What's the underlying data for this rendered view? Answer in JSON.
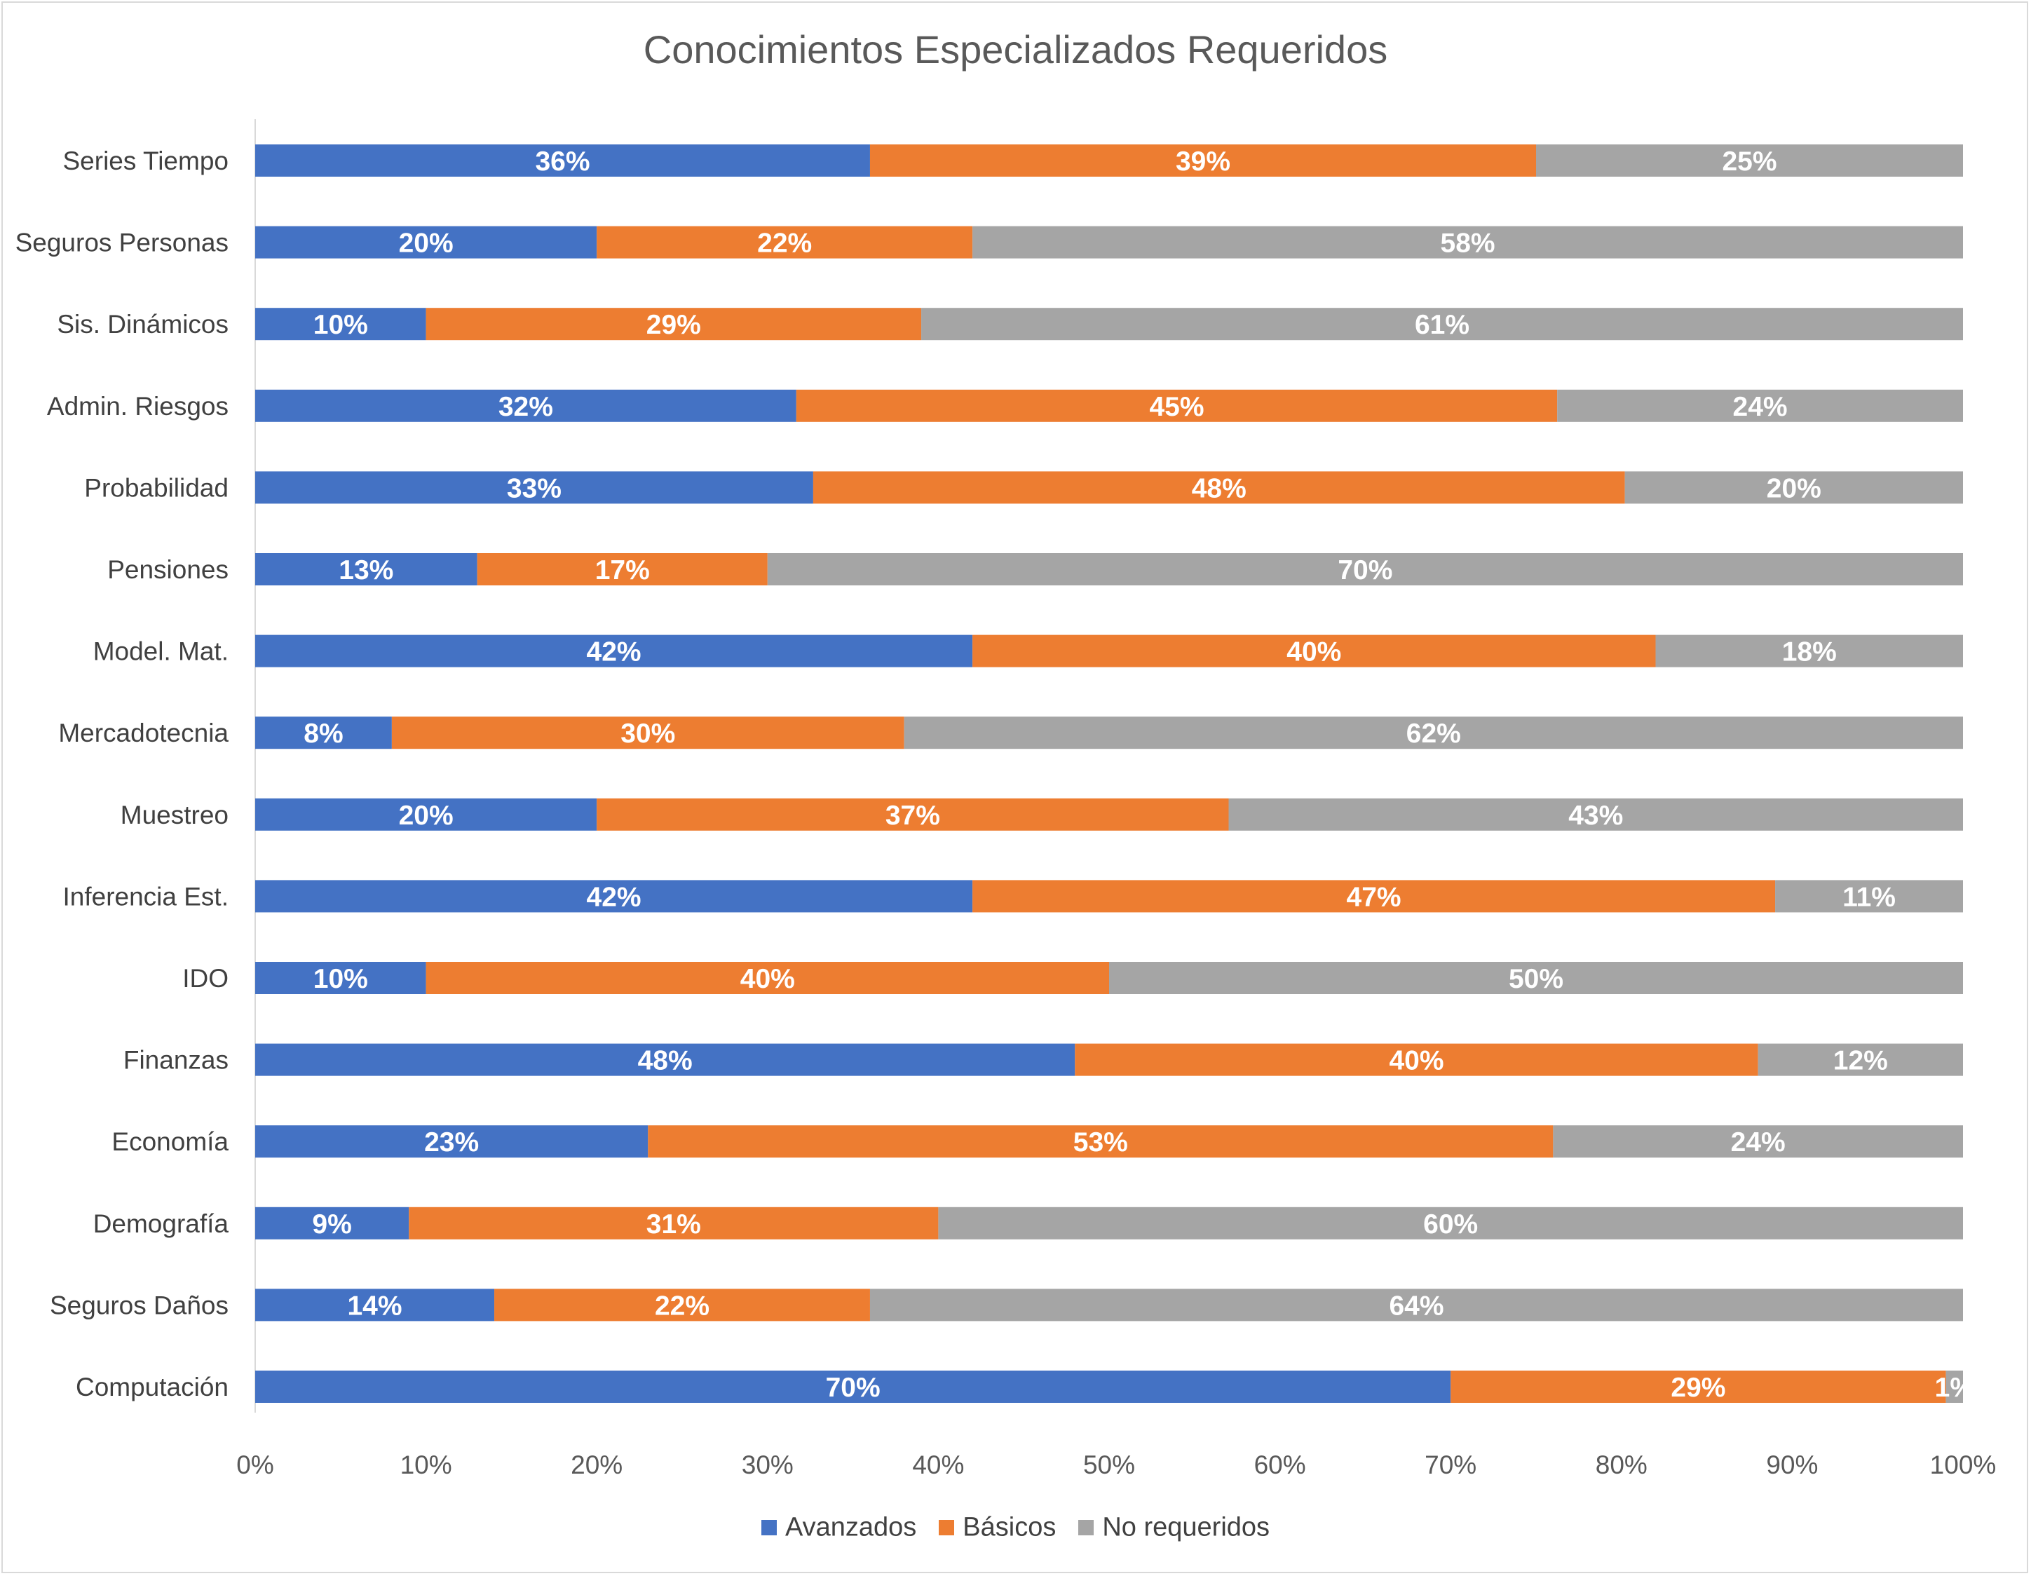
{
  "chart_data": {
    "type": "bar",
    "orientation": "horizontal",
    "stacked": "percent",
    "title": "Conocimientos Especializados Requeridos",
    "categories": [
      "Series Tiempo",
      "Seguros Personas",
      "Sis. Dinámicos",
      "Admin. Riesgos",
      "Probabilidad",
      "Pensiones",
      "Model. Mat.",
      "Mercadotecnia",
      "Muestreo",
      "Inferencia Est.",
      "IDO",
      "Finanzas",
      "Economía",
      "Demografía",
      "Seguros Daños",
      "Computación"
    ],
    "series": [
      {
        "name": "Avanzados",
        "color": "#4472C4",
        "values": [
          36,
          20,
          10,
          32,
          33,
          13,
          42,
          8,
          20,
          42,
          10,
          48,
          23,
          9,
          14,
          70
        ],
        "labels": [
          "36%",
          "20%",
          "10%",
          "32%",
          "33%",
          "13%",
          "42%",
          "8%",
          "20%",
          "42%",
          "10%",
          "48%",
          "23%",
          "9%",
          "14%",
          "70%"
        ]
      },
      {
        "name": "Básicos",
        "color": "#ED7D31",
        "values": [
          39,
          22,
          29,
          45,
          48,
          17,
          40,
          30,
          37,
          47,
          40,
          40,
          53,
          31,
          22,
          29
        ],
        "labels": [
          "39%",
          "22%",
          "29%",
          "45%",
          "48%",
          "17%",
          "40%",
          "30%",
          "37%",
          "47%",
          "40%",
          "40%",
          "53%",
          "31%",
          "22%",
          "29%"
        ]
      },
      {
        "name": "No requeridos",
        "color": "#A5A5A5",
        "values": [
          25,
          58,
          61,
          24,
          20,
          70,
          18,
          62,
          43,
          11,
          50,
          12,
          24,
          60,
          64,
          1
        ],
        "labels": [
          "25%",
          "58%",
          "61%",
          "24%",
          "20%",
          "70%",
          "18%",
          "62%",
          "43%",
          "11%",
          "50%",
          "12%",
          "24%",
          "60%",
          "64%",
          "1%"
        ]
      }
    ],
    "x_ticks": [
      "0%",
      "10%",
      "20%",
      "30%",
      "40%",
      "50%",
      "60%",
      "70%",
      "80%",
      "90%",
      "100%"
    ],
    "xlim": [
      0,
      100
    ],
    "grid": false,
    "legend_position": "bottom"
  }
}
